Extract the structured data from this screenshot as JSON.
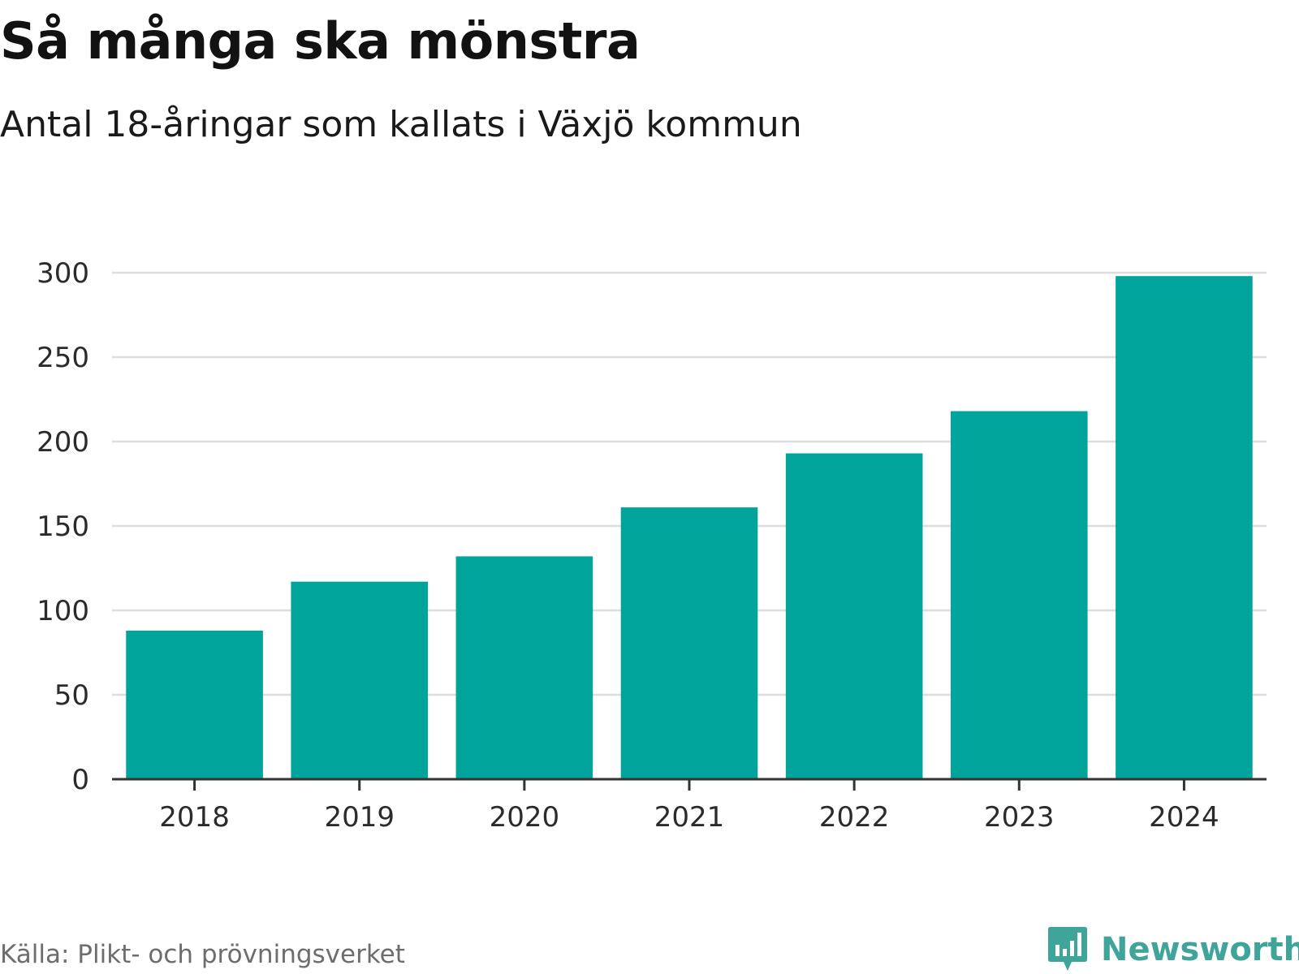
{
  "header": {
    "title": "Så många ska mönstra",
    "subtitle": "Antal 18-åringar som kallats i Växjö kommun"
  },
  "footer": {
    "source": "Källa: Plikt- och prövningsverket",
    "brand": "Newsworthy"
  },
  "colors": {
    "bar": "#00a49a",
    "grid": "#dcdcdc",
    "axis": "#333333",
    "tick_text": "#2b2b2b",
    "brand": "#3fa59b"
  },
  "chart_data": {
    "type": "bar",
    "title": "Så många ska mönstra",
    "subtitle": "Antal 18-åringar som kallats i Växjö kommun",
    "categories": [
      "2018",
      "2019",
      "2020",
      "2021",
      "2022",
      "2023",
      "2024"
    ],
    "values": [
      88,
      117,
      132,
      161,
      193,
      218,
      298
    ],
    "xlabel": "",
    "ylabel": "",
    "ylim": [
      0,
      300
    ],
    "yticks": [
      0,
      50,
      100,
      150,
      200,
      250,
      300
    ],
    "grid": true,
    "legend": "none"
  }
}
